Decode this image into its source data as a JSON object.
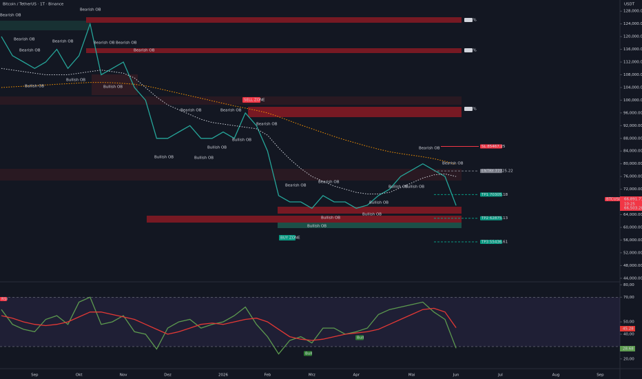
{
  "header": {
    "title": "Bitcoin / TetherUS · 1T · Binance",
    "currency": "USDT"
  },
  "chart_data": [
    {
      "type": "line",
      "categories": [
        null,
        null,
        null,
        "Sep",
        null,
        null,
        null,
        "Okt",
        null,
        null,
        null,
        "Nov",
        null,
        null,
        null,
        "Dez",
        null,
        null,
        null,
        null,
        "2026",
        null,
        null,
        null,
        "Feb",
        null,
        null,
        null,
        "Mrz",
        null,
        null,
        null,
        "Apr",
        null,
        null,
        null,
        null,
        "Mai",
        null,
        null,
        null,
        "Jun",
        null,
        null,
        null,
        "Jul",
        null,
        null,
        null,
        null,
        "Aug",
        null,
        null,
        null,
        "Sep",
        null,
        null
      ],
      "series": [
        {
          "color": "#26a69a",
          "style": "solid",
          "values": [
            120000,
            114000,
            112000,
            110000,
            112000,
            116000,
            110000,
            114000,
            124000,
            108000,
            110000,
            112000,
            104000,
            100000,
            88000,
            88000,
            90000,
            92000,
            88000,
            88000,
            90000,
            88000,
            96000,
            92000,
            84000,
            70000,
            68000,
            68000,
            66000,
            70000,
            68000,
            68000,
            66000,
            67000,
            70000,
            72000,
            76000,
            78000,
            80000,
            78000,
            76000,
            66891.71,
            null,
            null,
            null,
            null,
            null,
            null,
            null,
            null,
            null,
            null,
            null,
            null,
            null,
            null,
            null
          ]
        },
        {
          "color": "#ff9800",
          "style": "dotted",
          "values": [
            104000,
            104200,
            104400,
            104600,
            104800,
            105000,
            105200,
            105400,
            105600,
            105600,
            105500,
            105300,
            105000,
            104500,
            103800,
            103000,
            102200,
            101400,
            100600,
            99800,
            99000,
            98200,
            97500,
            96800,
            96000,
            94800,
            93500,
            92200,
            91000,
            89800,
            88600,
            87500,
            86500,
            85500,
            84600,
            83800,
            83200,
            82700,
            82200,
            81600,
            80800,
            79800,
            null,
            null,
            null,
            null,
            null,
            null,
            null,
            null,
            null,
            null,
            null,
            null,
            null,
            null,
            null
          ]
        },
        {
          "color": "#d1d4dc",
          "style": "dotted",
          "values": [
            110000,
            109500,
            109000,
            108500,
            108000,
            108000,
            108000,
            108500,
            109000,
            109500,
            109000,
            108500,
            107000,
            104000,
            101000,
            98500,
            97000,
            95500,
            94000,
            93000,
            92500,
            92000,
            91500,
            91000,
            89000,
            85000,
            81500,
            78500,
            76000,
            74500,
            73000,
            72000,
            71000,
            70500,
            70500,
            71000,
            72500,
            74000,
            75500,
            76500,
            76800,
            76000,
            null,
            null,
            null,
            null,
            null,
            null,
            null,
            null,
            null,
            null,
            null,
            null,
            null,
            null,
            null
          ]
        }
      ],
      "ylim": [
        42000,
        130000
      ],
      "yticks": [
        {
          "value": 128000,
          "label": "128,000.00"
        },
        {
          "value": 124000,
          "label": "124,000.00"
        },
        {
          "value": 120000,
          "label": "120,000.00"
        },
        {
          "value": 116000,
          "label": "116,000.00"
        },
        {
          "value": 112000,
          "label": "112,000.00"
        },
        {
          "value": 108000,
          "label": "108,000.00"
        },
        {
          "value": 104000,
          "label": "104,000.00"
        },
        {
          "value": 100000,
          "label": "100,000.00"
        },
        {
          "value": 96000,
          "label": "96,000.00"
        },
        {
          "value": 92000,
          "label": "92,000.00"
        },
        {
          "value": 88000,
          "label": "88,000.00"
        },
        {
          "value": 84000,
          "label": "84,000.00"
        },
        {
          "value": 80000,
          "label": "80,000.00"
        },
        {
          "value": 76000,
          "label": "76,000.00"
        },
        {
          "value": 72000,
          "label": "72,000.00"
        },
        {
          "value": 64000,
          "label": "64,000.00"
        },
        {
          "value": 60000,
          "label": "60,000.00"
        },
        {
          "value": 56000,
          "label": "56,000.00"
        },
        {
          "value": 52000,
          "label": "52,000.00"
        },
        {
          "value": 48000,
          "label": "48,000.00"
        },
        {
          "value": 44000,
          "label": "44,000.00"
        }
      ],
      "grid": false,
      "last_price": {
        "symbol": "BTCUSDT",
        "price_label": "66,891.71",
        "countdown": "10:25",
        "price2_label": "66,503.28"
      },
      "levels": [
        {
          "label": "SL 85467.25",
          "value": 85467.25,
          "color": "#f23645"
        },
        {
          "label": "ENTRY 77725.22",
          "value": 77725.22,
          "color": "#787b86"
        },
        {
          "label": "TP1 70305.18",
          "value": 70305.18,
          "color": "#089981"
        },
        {
          "label": "TP2 62875.13",
          "value": 62875.13,
          "color": "#089981"
        },
        {
          "label": "TP3 55436.61",
          "value": 55436.61,
          "color": "#089981"
        }
      ],
      "zone_labels": [
        "100%",
        "100%",
        "100%"
      ],
      "signals": [
        "SELL ZONE",
        "BUY ZONE"
      ],
      "annotations": [
        "Bearish OB",
        "Bearish OB",
        "Bearish OB",
        "Bearish OB",
        "Bearish OB",
        "Bearish OB",
        "Bearish OB",
        "Bearish OB",
        "Bearish OB",
        "Bearish OB",
        "Bearish OB",
        "Bearish OB",
        "Bearish OB",
        "Bearish OB",
        "Bearish OB",
        "Bullish OB",
        "Bullish OB",
        "Bullish OB",
        "Bullish OB",
        "Bullish OB",
        "Bullish OB",
        "Bullish OB",
        "Bullish OB",
        "Bullish OB",
        "Bullish OB",
        "Bullish OB",
        "Bullish OB",
        "Bullish OB"
      ]
    },
    {
      "type": "line",
      "title": "RSI",
      "series": [
        {
          "color": "#5d9b4f",
          "values": [
            60,
            48,
            44,
            42,
            52,
            55,
            48,
            66,
            70,
            48,
            50,
            55,
            42,
            40,
            28,
            45,
            50,
            52,
            45,
            48,
            50,
            55,
            62,
            48,
            38,
            24,
            35,
            38,
            33,
            45,
            45,
            40,
            42,
            45,
            56,
            60,
            62,
            64,
            66,
            58,
            52,
            28.68,
            null,
            null,
            null,
            null,
            null,
            null,
            null,
            null,
            null,
            null,
            null,
            null,
            null,
            null,
            null
          ],
          "value_label": "28.68"
        },
        {
          "color": "#e53935",
          "values": [
            55,
            53,
            50,
            48,
            47,
            48,
            50,
            54,
            58,
            58,
            56,
            54,
            52,
            48,
            44,
            40,
            42,
            45,
            48,
            49,
            48,
            50,
            52,
            53,
            50,
            44,
            38,
            36,
            35,
            36,
            38,
            40,
            41,
            42,
            44,
            48,
            52,
            56,
            60,
            61,
            58,
            45.28,
            null,
            null,
            null,
            null,
            null,
            null,
            null,
            null,
            null,
            null,
            null,
            null,
            null,
            null,
            null
          ],
          "value_label": "45.28"
        }
      ],
      "ylim": [
        16,
        83
      ],
      "yticks": [
        {
          "value": 80,
          "label": "80,00"
        },
        {
          "value": 70,
          "label": "70,00"
        },
        {
          "value": 50,
          "label": "50,00"
        },
        {
          "value": 40,
          "label": "40,00"
        },
        {
          "value": 20,
          "label": "20,00"
        }
      ],
      "bands": [
        70,
        30
      ],
      "signals": [
        "Bull",
        "Bull"
      ]
    }
  ]
}
